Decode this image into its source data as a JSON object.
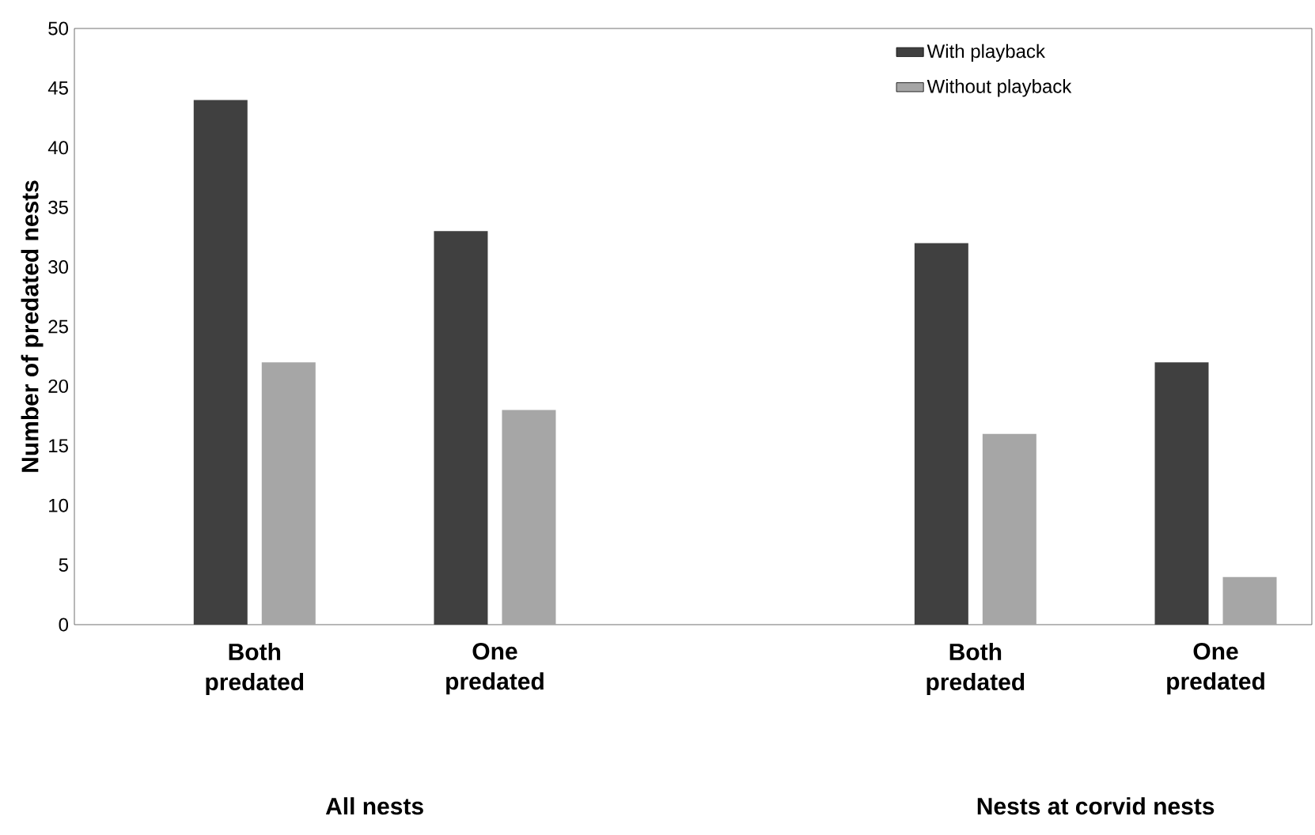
{
  "chart_data": {
    "type": "bar",
    "ylabel": "Number of predated nests",
    "categories": [
      "Both predated",
      "One predated",
      null,
      "Both predated",
      "One predated"
    ],
    "series": [
      {
        "name": "With playback",
        "color": "#404040",
        "values": [
          44,
          33,
          null,
          32,
          22
        ]
      },
      {
        "name": "Without playback",
        "color": "#a6a6a6",
        "values": [
          22,
          18,
          null,
          16,
          4
        ]
      }
    ],
    "ylim": [
      0,
      50
    ],
    "yticks": [
      0,
      5,
      10,
      15,
      20,
      25,
      30,
      35,
      40,
      45,
      50
    ],
    "legend": "top right",
    "annotations": [
      "All nests",
      "Nests at corvid nests"
    ]
  }
}
